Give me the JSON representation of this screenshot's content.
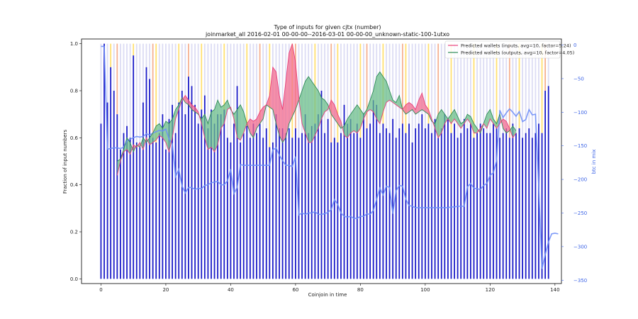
{
  "chart_data": {
    "type": "bar",
    "title": "Type of inputs for given cjtx (number)",
    "subtitle": "joinmarket_all 2016-02-01 00-00-00--2016-03-01 00-00-00_unknown-static-100-1utxo",
    "xlabel": "Coinjoin in time",
    "ylabel": "Fraction of input numbers",
    "y2label": "btc in mix",
    "xlim": [
      -6,
      142
    ],
    "ylim": [
      -0.02,
      1.02
    ],
    "y2lim": [
      -355,
      9
    ],
    "x_ticks": [
      "0",
      "20",
      "40",
      "60",
      "80",
      "100",
      "120",
      "140"
    ],
    "y_ticks": [
      "0.0",
      "0.2",
      "0.4",
      "0.6",
      "0.8",
      "1.0"
    ],
    "y2_ticks": [
      "0",
      "−50",
      "−100",
      "−150",
      "−200",
      "−250",
      "−300",
      "−350"
    ],
    "colors": {
      "bars": "#1a1ac8",
      "bars_upper": "#dcdcf4",
      "bars_yellow": "#ffe070",
      "bars_orange": "#f5b090",
      "mix_line": "#6f8ff7",
      "inputs_line": "#e8407a",
      "outputs_line": "#2e8b57",
      "fill_inputs_higher": "#f26a8e",
      "fill_outputs_higher": "#6bbf8a",
      "right_axis": "#3b63e6"
    },
    "legend": {
      "placement": "top-right",
      "entries": [
        {
          "label": "Predicted wallets (inputs, avg=10, factor=5.24)",
          "color": "#e8407a"
        },
        {
          "label": "Predicted wallets (outputs, avg=10, factor=4.05)",
          "color": "#2e8b57"
        }
      ]
    },
    "bar_fraction": [
      0.66,
      1.0,
      0.75,
      0.9,
      0.8,
      0.7,
      0.55,
      0.62,
      0.65,
      0.6,
      0.95,
      0.58,
      0.56,
      0.75,
      0.9,
      0.85,
      0.6,
      0.58,
      0.62,
      0.7,
      0.55,
      0.68,
      0.74,
      0.62,
      0.75,
      0.8,
      0.7,
      0.86,
      0.82,
      0.74,
      0.66,
      0.72,
      0.78,
      0.64,
      0.72,
      0.66,
      0.7,
      0.7,
      0.72,
      0.6,
      0.58,
      0.66,
      0.82,
      0.58,
      0.62,
      0.65,
      0.6,
      0.66,
      0.62,
      0.66,
      0.6,
      0.64,
      0.56,
      0.58,
      0.7,
      0.64,
      0.64,
      0.62,
      0.64,
      0.6,
      0.64,
      0.6,
      0.62,
      0.7,
      0.62,
      0.65,
      0.66,
      0.7,
      0.8,
      0.62,
      0.68,
      0.58,
      0.6,
      0.58,
      0.62,
      0.74,
      0.66,
      0.68,
      0.62,
      0.66,
      0.6,
      0.7,
      0.64,
      0.66,
      0.76,
      0.74,
      0.62,
      0.66,
      0.64,
      0.62,
      0.68,
      0.6,
      0.64,
      0.66,
      0.62,
      0.66,
      0.58,
      0.64,
      0.66,
      0.7,
      0.64,
      0.66,
      0.62,
      0.68,
      0.6,
      0.64,
      0.7,
      0.68,
      0.62,
      0.66,
      0.6,
      0.62,
      0.68,
      0.64,
      0.66,
      0.6,
      0.62,
      0.66,
      0.64,
      0.62,
      0.62,
      0.66,
      0.64,
      0.6,
      0.62,
      0.64,
      0.6,
      0.66,
      0.62,
      0.64,
      0.6,
      0.62,
      0.64,
      0.6,
      0.62,
      0.66,
      0.62,
      0.8,
      0.82
    ],
    "mix_btc": [
      -2,
      -2,
      -155,
      -154,
      -153,
      -153,
      -154,
      -152,
      -143,
      -140,
      -138,
      -136,
      -137,
      -136,
      -132,
      -134,
      -131,
      -129,
      -127,
      -128,
      -125,
      -140,
      -147,
      -196,
      -185,
      -210,
      -220,
      -212,
      -212,
      -215,
      -213,
      -214,
      -209,
      -208,
      -205,
      -204,
      -203,
      -208,
      -208,
      -202,
      -185,
      -221,
      -212,
      -178,
      -179,
      -179,
      -179,
      -179,
      -179,
      -179,
      -179,
      -179,
      -179,
      -156,
      -153,
      -164,
      -172,
      -179,
      -179,
      -181,
      -166,
      -253,
      -250,
      -252,
      -250,
      -250,
      -248,
      -252,
      -252,
      -251,
      -249,
      -245,
      -230,
      -237,
      -250,
      -255,
      -256,
      -255,
      -258,
      -258,
      -255,
      -255,
      -251,
      -252,
      -246,
      -230,
      -213,
      -223,
      -210,
      -212,
      -251,
      -217,
      -209,
      -210,
      -229,
      -239,
      -240,
      -242,
      -242,
      -242,
      -242,
      -242,
      -242,
      -242,
      -242,
      -242,
      -242,
      -242,
      -241,
      -241,
      -240,
      -240,
      -240,
      -211,
      -206,
      -213,
      -214,
      -215,
      -209,
      -206,
      -194,
      -190,
      -172,
      -97,
      -108,
      -101,
      -95,
      -100,
      -106,
      -99,
      -114,
      -111,
      -96,
      -104,
      -103,
      -211,
      -333,
      -312,
      -293,
      -281,
      -280,
      -281
    ],
    "inputs_wallets": [
      null,
      null,
      null,
      null,
      null,
      0.44,
      0.5,
      0.54,
      0.55,
      0.53,
      0.57,
      0.56,
      0.58,
      0.55,
      0.6,
      0.57,
      0.58,
      0.59,
      0.61,
      0.6,
      0.58,
      0.54,
      0.6,
      0.68,
      0.72,
      0.76,
      0.78,
      0.76,
      0.74,
      0.73,
      0.71,
      0.66,
      0.6,
      0.55,
      0.56,
      0.54,
      0.57,
      0.64,
      0.66,
      0.72,
      0.73,
      0.68,
      0.6,
      0.59,
      0.62,
      0.66,
      0.68,
      0.67,
      0.68,
      0.71,
      0.73,
      0.74,
      0.78,
      0.9,
      0.88,
      0.78,
      0.72,
      0.84,
      0.96,
      1.0,
      0.92,
      0.77,
      0.66,
      0.62,
      0.58,
      0.58,
      0.61,
      0.64,
      0.68,
      0.71,
      0.72,
      0.76,
      0.74,
      0.7,
      0.67,
      0.61,
      0.6,
      0.62,
      0.63,
      0.62,
      0.64,
      0.68,
      0.71,
      0.72,
      0.71,
      0.68,
      0.66,
      0.71,
      0.75,
      0.76,
      0.75,
      0.74,
      0.73,
      0.72,
      0.74,
      0.75,
      0.74,
      0.72,
      0.76,
      0.79,
      0.74,
      0.72,
      0.68,
      0.64,
      0.6,
      0.62,
      0.66,
      0.68,
      0.66,
      0.68,
      0.66,
      0.64,
      0.66,
      0.68,
      0.66,
      0.62,
      0.62,
      0.64,
      0.66,
      0.64,
      0.68,
      0.66,
      0.64,
      0.66,
      0.68,
      0.67,
      0.64,
      0.6,
      0.62
    ],
    "outputs_wallets": [
      null,
      null,
      null,
      null,
      null,
      0.5,
      0.51,
      0.55,
      0.6,
      0.58,
      0.54,
      0.57,
      0.56,
      0.6,
      0.58,
      0.6,
      0.62,
      0.65,
      0.66,
      0.64,
      0.67,
      0.66,
      0.68,
      0.72,
      0.74,
      0.77,
      0.75,
      0.74,
      0.72,
      0.71,
      0.7,
      0.68,
      0.7,
      0.66,
      0.71,
      0.72,
      0.76,
      0.73,
      0.74,
      0.76,
      0.72,
      0.7,
      0.72,
      0.74,
      0.71,
      0.66,
      0.62,
      0.6,
      0.64,
      0.66,
      0.68,
      0.74,
      0.73,
      0.72,
      0.66,
      0.61,
      0.58,
      0.6,
      0.66,
      0.69,
      0.72,
      0.76,
      0.8,
      0.84,
      0.86,
      0.84,
      0.82,
      0.8,
      0.77,
      0.76,
      0.74,
      0.7,
      0.68,
      0.66,
      0.64,
      0.65,
      0.68,
      0.7,
      0.72,
      0.74,
      0.72,
      0.7,
      0.72,
      0.76,
      0.8,
      0.86,
      0.88,
      0.86,
      0.84,
      0.8,
      0.76,
      0.75,
      0.78,
      0.72,
      0.7,
      0.71,
      0.72,
      0.7,
      0.71,
      0.72,
      0.71,
      0.7,
      0.67,
      0.66,
      0.7,
      0.72,
      0.7,
      0.68,
      0.7,
      0.72,
      0.69,
      0.66,
      0.67,
      0.7,
      0.69,
      0.66,
      0.64,
      0.62,
      0.66,
      0.7,
      0.72,
      0.68,
      0.66,
      0.7,
      0.64,
      0.62,
      0.63,
      0.65,
      0.63
    ]
  }
}
